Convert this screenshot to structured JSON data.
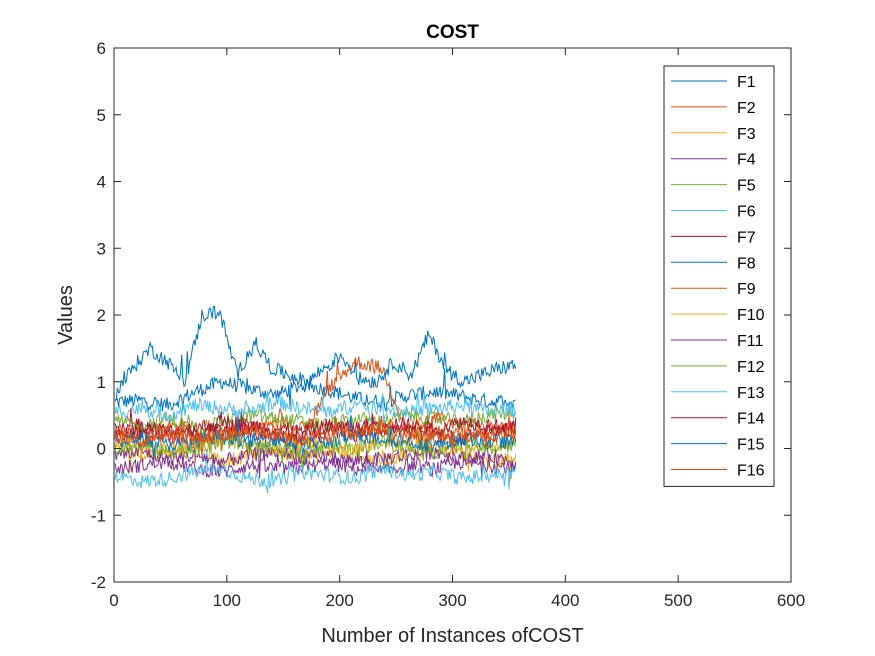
{
  "chart_data": {
    "type": "line",
    "title": "COST",
    "xlabel": "Number of Instances ofCOST",
    "ylabel": "Values",
    "xlim": [
      0,
      600
    ],
    "ylim": [
      -2,
      6
    ],
    "xticks": [
      0,
      100,
      200,
      300,
      400,
      500,
      600
    ],
    "yticks": [
      -2,
      -1,
      0,
      1,
      2,
      3,
      4,
      5,
      6
    ],
    "grid": false,
    "legend_position": "top-right",
    "n_points": 356,
    "series": [
      {
        "name": "F1",
        "color": "#0072BD",
        "values": [
          0.7,
          0.72,
          0.65,
          0.85,
          1.0,
          0.9,
          0.8,
          0.95,
          0.88,
          0.75,
          0.7,
          0.8,
          0.85,
          0.78,
          0.7,
          0.72
        ]
      },
      {
        "name": "F2",
        "color": "#D95319",
        "values": [
          0.3,
          0.25,
          0.35,
          0.28,
          0.22,
          0.3,
          0.4,
          0.35,
          0.3,
          0.28,
          0.32,
          0.3,
          0.45,
          0.35,
          0.3,
          0.32
        ]
      },
      {
        "name": "F3",
        "color": "#EDB120",
        "values": [
          0.0,
          -0.1,
          -0.05,
          0.05,
          -0.2,
          -0.1,
          0.0,
          -0.15,
          -0.05,
          -0.1,
          -0.2,
          -0.05,
          0.0,
          -0.1,
          -0.2,
          -0.15
        ]
      },
      {
        "name": "F4",
        "color": "#7E2F8E",
        "values": [
          -0.3,
          -0.25,
          -0.2,
          -0.3,
          -0.35,
          -0.25,
          -0.3,
          -0.28,
          -0.22,
          -0.3,
          -0.35,
          -0.25,
          -0.3,
          -0.2,
          -0.25,
          -0.3
        ]
      },
      {
        "name": "F5",
        "color": "#77AC30",
        "values": [
          0.4,
          0.35,
          0.45,
          0.3,
          0.4,
          0.5,
          0.45,
          0.4,
          0.35,
          0.45,
          0.4,
          0.5,
          0.45,
          0.4,
          0.5,
          0.55
        ]
      },
      {
        "name": "F6",
        "color": "#4DBEEE",
        "values": [
          -0.4,
          -0.5,
          -0.45,
          -0.35,
          -0.3,
          -0.45,
          -0.5,
          -0.35,
          -0.4,
          -0.45,
          -0.3,
          -0.4,
          -0.35,
          -0.45,
          -0.4,
          -0.35
        ]
      },
      {
        "name": "F7",
        "color": "#A2142F",
        "values": [
          0.2,
          0.25,
          0.15,
          0.2,
          0.3,
          0.25,
          0.2,
          0.15,
          0.25,
          0.2,
          0.3,
          0.25,
          0.2,
          0.15,
          0.25,
          0.3
        ]
      },
      {
        "name": "F8",
        "color": "#0072BD",
        "values": [
          0.8,
          1.2,
          1.5,
          1.3,
          1.0,
          2.0,
          2.05,
          1.1,
          1.6,
          1.2,
          1.1,
          1.0,
          1.2,
          1.4,
          1.05,
          1.0,
          1.3,
          1.1,
          1.7,
          1.2,
          1.0,
          1.1,
          1.2,
          1.25
        ]
      },
      {
        "name": "F9",
        "color": "#D95319",
        "values": [
          0.2,
          0.15,
          0.25,
          0.1,
          0.2,
          0.3,
          0.2,
          0.15,
          0.9,
          1.3,
          1.2,
          0.2,
          0.25,
          0.15,
          0.2,
          0.3
        ]
      },
      {
        "name": "F10",
        "color": "#EDB120",
        "values": [
          0.1,
          0.05,
          0.0,
          0.1,
          0.15,
          0.05,
          0.0,
          0.1,
          0.05,
          0.0,
          0.1,
          0.05,
          0.1,
          0.0,
          0.05,
          0.1
        ]
      },
      {
        "name": "F11",
        "color": "#7E2F8E",
        "values": [
          -0.1,
          -0.05,
          -0.15,
          -0.1,
          -0.2,
          -0.1,
          -0.05,
          -0.15,
          -0.1,
          -0.2,
          -0.15,
          -0.1,
          -0.05,
          -0.15,
          -0.1,
          -0.2
        ]
      },
      {
        "name": "F12",
        "color": "#77AC30",
        "values": [
          0.0,
          0.05,
          -0.05,
          0.0,
          0.1,
          0.05,
          0.0,
          -0.05,
          0.05,
          0.0,
          0.1,
          0.0,
          -0.05,
          0.05,
          0.0,
          0.05
        ]
      },
      {
        "name": "F13",
        "color": "#4DBEEE",
        "values": [
          0.55,
          0.6,
          0.5,
          0.65,
          0.6,
          0.55,
          0.7,
          0.6,
          0.55,
          0.65,
          0.6,
          0.55,
          0.6,
          0.65,
          0.55,
          0.6
        ]
      },
      {
        "name": "F14",
        "color": "#A2142F",
        "values": [
          0.3,
          0.35,
          0.25,
          0.3,
          0.4,
          0.35,
          0.3,
          0.25,
          0.35,
          0.3,
          0.4,
          0.35,
          0.3,
          0.4,
          0.35,
          0.3
        ]
      },
      {
        "name": "F15",
        "color": "#0072BD",
        "values": [
          0.1,
          0.15,
          0.05,
          0.1,
          0.2,
          0.1,
          0.15,
          0.05,
          0.1,
          0.2,
          0.15,
          0.1,
          0.05,
          0.15,
          0.1,
          0.1
        ]
      },
      {
        "name": "F16",
        "color": "#D95319",
        "values": [
          0.2,
          0.1,
          0.25,
          0.15,
          0.2,
          0.3,
          0.25,
          0.15,
          0.2,
          0.25,
          0.3,
          0.2,
          0.15,
          0.25,
          0.2,
          0.25
        ]
      }
    ]
  }
}
